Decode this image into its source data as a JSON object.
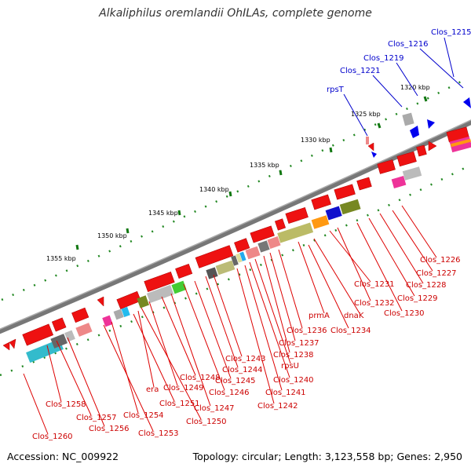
{
  "title": "Alkaliphilus oremlandii OhILAs, complete genome",
  "footer": {
    "accession_label": "Accession:",
    "accession": "NC_009922",
    "topology_label": "Topology:",
    "topology": "circular;",
    "length_label": "Length:",
    "length": "3,123,558 bp;",
    "genes_label": "Genes:",
    "genes": "2,950"
  },
  "colors": {
    "backbone": "#777777",
    "forward_gene": "#ee1111",
    "reverse_gene": "#0000ee",
    "red_label": "#cc0000",
    "blue_label": "#0000cc",
    "scale_tick": "#117711"
  },
  "scale_ticks": [
    "1320 kbp",
    "1325 kbp",
    "1330 kbp",
    "1335 kbp",
    "1340 kbp",
    "1345 kbp",
    "1350 kbp",
    "1355 kbp"
  ],
  "blue_labels": [
    "Clos_1215",
    "Clos_1216",
    "Clos_1219",
    "Clos_1221",
    "rpsT"
  ],
  "red_labels": [
    "Clos_1226",
    "Clos_1227",
    "Clos_1228",
    "Clos_1229",
    "Clos_1230",
    "Clos_1231",
    "Clos_1232",
    "dnaK",
    "prmA",
    "Clos_1234",
    "Clos_1236",
    "Clos_1237",
    "Clos_1238",
    "rpsU",
    "Clos_1240",
    "Clos_1241",
    "Clos_1242",
    "Clos_1243",
    "Clos_1244",
    "Clos_1245",
    "Clos_1246",
    "Clos_1247",
    "Clos_1248",
    "Clos_1249",
    "era",
    "Clos_1251",
    "Clos_1250",
    "Clos_1254",
    "Clos_1253",
    "Clos_1256",
    "Clos_1257",
    "Clos_1258",
    "Clos_1260"
  ]
}
